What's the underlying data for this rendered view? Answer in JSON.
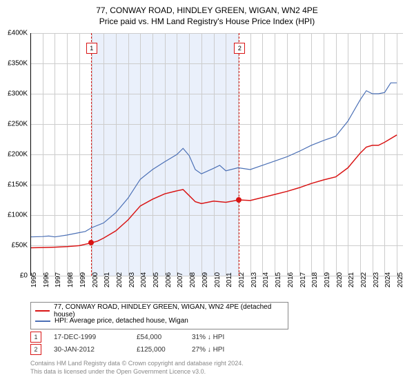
{
  "title": "77, CONWAY ROAD, HINDLEY GREEN, WIGAN, WN2 4PE",
  "subtitle": "Price paid vs. HM Land Registry's House Price Index (HPI)",
  "chart": {
    "type": "line",
    "background_color": "#ffffff",
    "grid_color": "#cccccc",
    "highlight_band_color": "#eaf0fb",
    "xlim": [
      1995,
      2025.5
    ],
    "ylim": [
      0,
      400000
    ],
    "ytick_step": 50000,
    "yticks": [
      "£0",
      "£50K",
      "£100K",
      "£150K",
      "£200K",
      "£250K",
      "£300K",
      "£350K",
      "£400K"
    ],
    "xticks": [
      "1995",
      "1996",
      "1997",
      "1998",
      "1999",
      "2000",
      "2001",
      "2002",
      "2003",
      "2004",
      "2005",
      "2006",
      "2007",
      "2008",
      "2009",
      "2010",
      "2011",
      "2012",
      "2013",
      "2014",
      "2015",
      "2016",
      "2017",
      "2018",
      "2019",
      "2020",
      "2021",
      "2022",
      "2023",
      "2024",
      "2025"
    ],
    "highlight_band": {
      "x_start": 1999.96,
      "x_end": 2012.08
    },
    "series": [
      {
        "name": "property",
        "label": "77, CONWAY ROAD, HINDLEY GREEN, WIGAN, WN2 4PE (detached house)",
        "color": "#d91414",
        "line_width": 1.5,
        "points": [
          [
            1995,
            46000
          ],
          [
            1996,
            46500
          ],
          [
            1997,
            47000
          ],
          [
            1998,
            48000
          ],
          [
            1999,
            49500
          ],
          [
            1999.96,
            54000
          ],
          [
            2000.5,
            57000
          ],
          [
            2001,
            62000
          ],
          [
            2002,
            74000
          ],
          [
            2003,
            92000
          ],
          [
            2004,
            115000
          ],
          [
            2005,
            126000
          ],
          [
            2006,
            135000
          ],
          [
            2007,
            140000
          ],
          [
            2007.5,
            142000
          ],
          [
            2008,
            132000
          ],
          [
            2008.5,
            122000
          ],
          [
            2009,
            119000
          ],
          [
            2010,
            123000
          ],
          [
            2011,
            121000
          ],
          [
            2012.08,
            125000
          ],
          [
            2013,
            124000
          ],
          [
            2014,
            129000
          ],
          [
            2015,
            134000
          ],
          [
            2016,
            139000
          ],
          [
            2017,
            145000
          ],
          [
            2018,
            152000
          ],
          [
            2019,
            158000
          ],
          [
            2020,
            163000
          ],
          [
            2021,
            178000
          ],
          [
            2022,
            202000
          ],
          [
            2022.5,
            212000
          ],
          [
            2023,
            215000
          ],
          [
            2023.5,
            215000
          ],
          [
            2024,
            220000
          ],
          [
            2025,
            232000
          ]
        ]
      },
      {
        "name": "hpi",
        "label": "HPI: Average price, detached house, Wigan",
        "color": "#4a6fb5",
        "line_width": 1.2,
        "points": [
          [
            1995,
            64000
          ],
          [
            1996,
            64500
          ],
          [
            1996.5,
            65500
          ],
          [
            1997,
            64000
          ],
          [
            1998,
            67000
          ],
          [
            1999,
            71000
          ],
          [
            1999.5,
            73000
          ],
          [
            2000,
            79000
          ],
          [
            2001,
            87000
          ],
          [
            2002,
            104000
          ],
          [
            2003,
            128000
          ],
          [
            2004,
            159000
          ],
          [
            2005,
            175000
          ],
          [
            2006,
            188000
          ],
          [
            2007,
            200000
          ],
          [
            2007.5,
            210000
          ],
          [
            2008,
            198000
          ],
          [
            2008.5,
            175000
          ],
          [
            2009,
            168000
          ],
          [
            2010,
            177000
          ],
          [
            2010.5,
            182000
          ],
          [
            2011,
            173000
          ],
          [
            2012,
            178000
          ],
          [
            2013,
            175000
          ],
          [
            2014,
            182000
          ],
          [
            2015,
            189000
          ],
          [
            2016,
            196000
          ],
          [
            2017,
            205000
          ],
          [
            2018,
            215000
          ],
          [
            2019,
            223000
          ],
          [
            2020,
            230000
          ],
          [
            2021,
            255000
          ],
          [
            2022,
            290000
          ],
          [
            2022.5,
            305000
          ],
          [
            2023,
            300000
          ],
          [
            2023.5,
            300000
          ],
          [
            2024,
            302000
          ],
          [
            2024.5,
            318000
          ],
          [
            2025,
            318000
          ]
        ]
      }
    ],
    "sale_markers": [
      {
        "n": "1",
        "x": 1999.96,
        "y": 54000,
        "color": "#d91414"
      },
      {
        "n": "2",
        "x": 2012.08,
        "y": 125000,
        "color": "#d91414"
      }
    ],
    "label_fontsize": 10
  },
  "legend": {
    "items": [
      {
        "color": "#d91414",
        "label": "77, CONWAY ROAD, HINDLEY GREEN, WIGAN, WN2 4PE (detached house)"
      },
      {
        "color": "#4a6fb5",
        "label": "HPI: Average price, detached house, Wigan"
      }
    ]
  },
  "sales": [
    {
      "n": "1",
      "color": "#d91414",
      "date": "17-DEC-1999",
      "price": "£54,000",
      "diff": "31% ↓ HPI"
    },
    {
      "n": "2",
      "color": "#d91414",
      "date": "30-JAN-2012",
      "price": "£125,000",
      "diff": "27% ↓ HPI"
    }
  ],
  "footer": {
    "line1": "Contains HM Land Registry data © Crown copyright and database right 2024.",
    "line2": "This data is licensed under the Open Government Licence v3.0."
  }
}
